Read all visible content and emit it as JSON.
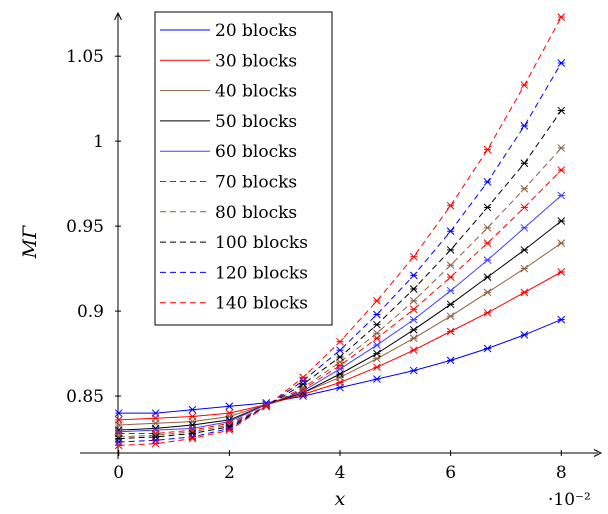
{
  "chart_data": {
    "type": "line",
    "title": "",
    "xlabel": "x",
    "ylabel": "MΓ",
    "x_scale_label": "·10⁻²",
    "xlim": [
      -0.7,
      8.7
    ],
    "ylim": [
      0.8165,
      1.076
    ],
    "x_ticks": [
      0,
      2,
      4,
      6,
      8
    ],
    "x_tick_labels": [
      "0",
      "2",
      "4",
      "6",
      "8"
    ],
    "y_ticks": [
      0.85,
      0.9,
      0.95,
      1.0,
      1.05
    ],
    "y_tick_labels": [
      "0.85",
      "0.9",
      "0.95",
      "1",
      "1.05"
    ],
    "grid": false,
    "legend_position": "top-left-inside",
    "x": [
      0,
      0.667,
      1.333,
      2,
      2.667,
      3.333,
      4,
      4.667,
      5.333,
      6,
      6.667,
      7.333,
      8
    ],
    "series": [
      {
        "name": "20 blocks",
        "color": "#0000ff",
        "dash": "solid",
        "values": [
          0.84,
          0.84,
          0.842,
          0.844,
          0.846,
          0.85,
          0.855,
          0.86,
          0.865,
          0.871,
          0.878,
          0.886,
          0.895
        ]
      },
      {
        "name": "30 blocks",
        "color": "#ff0000",
        "dash": "solid",
        "values": [
          0.836,
          0.837,
          0.838,
          0.84,
          0.845,
          0.851,
          0.858,
          0.867,
          0.877,
          0.888,
          0.899,
          0.911,
          0.923
        ]
      },
      {
        "name": "40 blocks",
        "color": "#8b6040",
        "dash": "solid",
        "values": [
          0.833,
          0.834,
          0.835,
          0.838,
          0.845,
          0.852,
          0.861,
          0.872,
          0.884,
          0.897,
          0.911,
          0.925,
          0.94
        ]
      },
      {
        "name": "50 blocks",
        "color": "#000000",
        "dash": "solid",
        "values": [
          0.83,
          0.831,
          0.833,
          0.836,
          0.845,
          0.852,
          0.863,
          0.875,
          0.889,
          0.904,
          0.92,
          0.936,
          0.953
        ]
      },
      {
        "name": "60 blocks",
        "color": "#4040ff",
        "dash": "solid",
        "values": [
          0.829,
          0.83,
          0.831,
          0.835,
          0.845,
          0.853,
          0.866,
          0.88,
          0.895,
          0.912,
          0.93,
          0.949,
          0.968
        ]
      },
      {
        "name": "70 blocks",
        "color": "#ff0000",
        "dash": "dashed",
        "values": [
          0.828,
          0.828,
          0.83,
          0.834,
          0.844,
          0.854,
          0.868,
          0.884,
          0.901,
          0.92,
          0.94,
          0.961,
          0.983
        ]
      },
      {
        "name": "80 blocks",
        "color": "#8b6040",
        "dash": "dashed",
        "values": [
          0.826,
          0.827,
          0.829,
          0.833,
          0.844,
          0.855,
          0.87,
          0.887,
          0.906,
          0.927,
          0.949,
          0.972,
          0.996
        ]
      },
      {
        "name": "100 blocks",
        "color": "#000000",
        "dash": "dashed",
        "values": [
          0.825,
          0.826,
          0.828,
          0.832,
          0.844,
          0.857,
          0.873,
          0.892,
          0.913,
          0.936,
          0.961,
          0.987,
          1.018
        ]
      },
      {
        "name": "120 blocks",
        "color": "#0000ff",
        "dash": "dashed",
        "values": [
          0.823,
          0.824,
          0.826,
          0.831,
          0.844,
          0.859,
          0.877,
          0.898,
          0.921,
          0.947,
          0.976,
          1.009,
          1.046
        ]
      },
      {
        "name": "140 blocks",
        "color": "#ff0000",
        "dash": "dashed",
        "values": [
          0.821,
          0.822,
          0.825,
          0.83,
          0.844,
          0.861,
          0.882,
          0.906,
          0.932,
          0.962,
          0.995,
          1.033,
          1.073
        ]
      }
    ]
  }
}
